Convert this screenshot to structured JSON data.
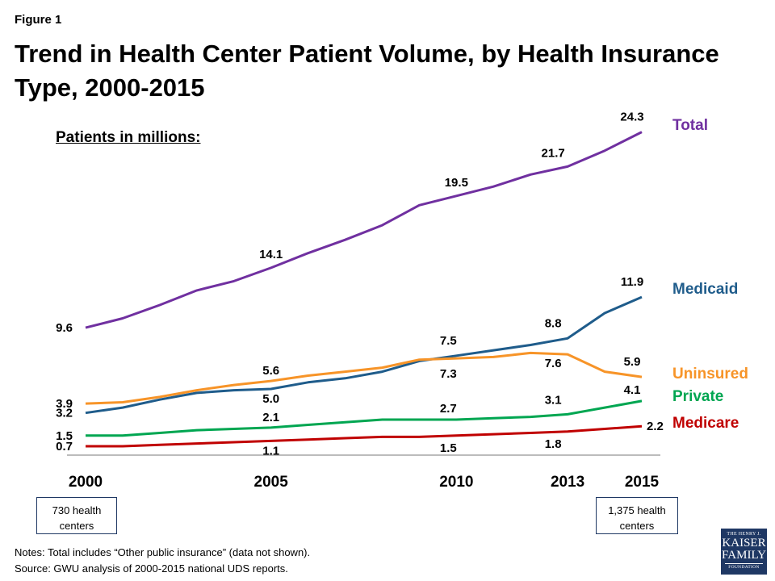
{
  "figure_label": "Figure 1",
  "title": "Trend in Health Center Patient Volume, by Health Insurance Type, 2000-2015",
  "units_label": "Patients in millions:",
  "boxes": {
    "start": {
      "line1": "730 health",
      "line2": "centers"
    },
    "end": {
      "line1": "1,375 health",
      "line2": "centers"
    }
  },
  "notes": {
    "note": "Notes: Total includes “Other public insurance” (data not shown).",
    "source": "Source: GWU analysis of 2000-2015 national UDS reports."
  },
  "logo": {
    "line1": "THE HENRY J.",
    "line2": "KAISER",
    "line3": "FAMILY",
    "line4": "FOUNDATION"
  },
  "chart_data": {
    "type": "line",
    "title": "Trend in Health Center Patient Volume, by Health Insurance Type, 2000-2015",
    "xlabel": "",
    "ylabel": "Patients in millions",
    "x": [
      2000,
      2001,
      2002,
      2003,
      2004,
      2005,
      2006,
      2007,
      2008,
      2009,
      2010,
      2011,
      2012,
      2013,
      2014,
      2015
    ],
    "x_tick_labels": [
      "2000",
      "2005",
      "2010",
      "2013",
      "2015"
    ],
    "x_ticks": [
      2000,
      2005,
      2010,
      2013,
      2015
    ],
    "ylim": [
      0,
      25
    ],
    "grid": false,
    "legend": "right, direct labels at line ends",
    "series": [
      {
        "name": "Total",
        "color": "#7030a0",
        "values": [
          9.6,
          10.3,
          11.3,
          12.4,
          13.1,
          14.1,
          15.2,
          16.2,
          17.3,
          18.8,
          19.5,
          20.2,
          21.1,
          21.7,
          22.9,
          24.3
        ],
        "labels": {
          "2000": "9.6",
          "2005": "14.1",
          "2010": "19.5",
          "2013": "21.7",
          "2015": "24.3"
        }
      },
      {
        "name": "Medicaid",
        "color": "#1f5c8b",
        "values": [
          3.2,
          3.6,
          4.2,
          4.7,
          4.9,
          5.0,
          5.5,
          5.8,
          6.3,
          7.1,
          7.5,
          7.9,
          8.3,
          8.8,
          10.7,
          11.9
        ],
        "labels": {
          "2000": "3.2",
          "2005": "5.0",
          "2010": "7.5",
          "2013": "8.8",
          "2015": "11.9"
        }
      },
      {
        "name": "Uninsured",
        "color": "#f79428",
        "values": [
          3.9,
          4.0,
          4.4,
          4.9,
          5.3,
          5.6,
          6.0,
          6.3,
          6.6,
          7.2,
          7.3,
          7.4,
          7.7,
          7.6,
          6.3,
          5.9
        ],
        "labels": {
          "2000": "3.9",
          "2005": "5.6",
          "2010": "7.3",
          "2013": "7.6",
          "2015": "5.9"
        }
      },
      {
        "name": "Private",
        "color": "#00a651",
        "values": [
          1.5,
          1.5,
          1.7,
          1.9,
          2.0,
          2.1,
          2.3,
          2.5,
          2.7,
          2.7,
          2.7,
          2.8,
          2.9,
          3.1,
          3.6,
          4.1
        ],
        "labels": {
          "2000": "1.5",
          "2005": "2.1",
          "2010": "2.7",
          "2013": "3.1",
          "2015": "4.1"
        }
      },
      {
        "name": "Medicare",
        "color": "#c00000",
        "values": [
          0.7,
          0.7,
          0.8,
          0.9,
          1.0,
          1.1,
          1.2,
          1.3,
          1.4,
          1.4,
          1.5,
          1.6,
          1.7,
          1.8,
          2.0,
          2.2
        ],
        "labels": {
          "2000": "0.7",
          "2005": "1.1",
          "2010": "1.5",
          "2013": "1.8",
          "2015": "2.2"
        }
      }
    ]
  }
}
